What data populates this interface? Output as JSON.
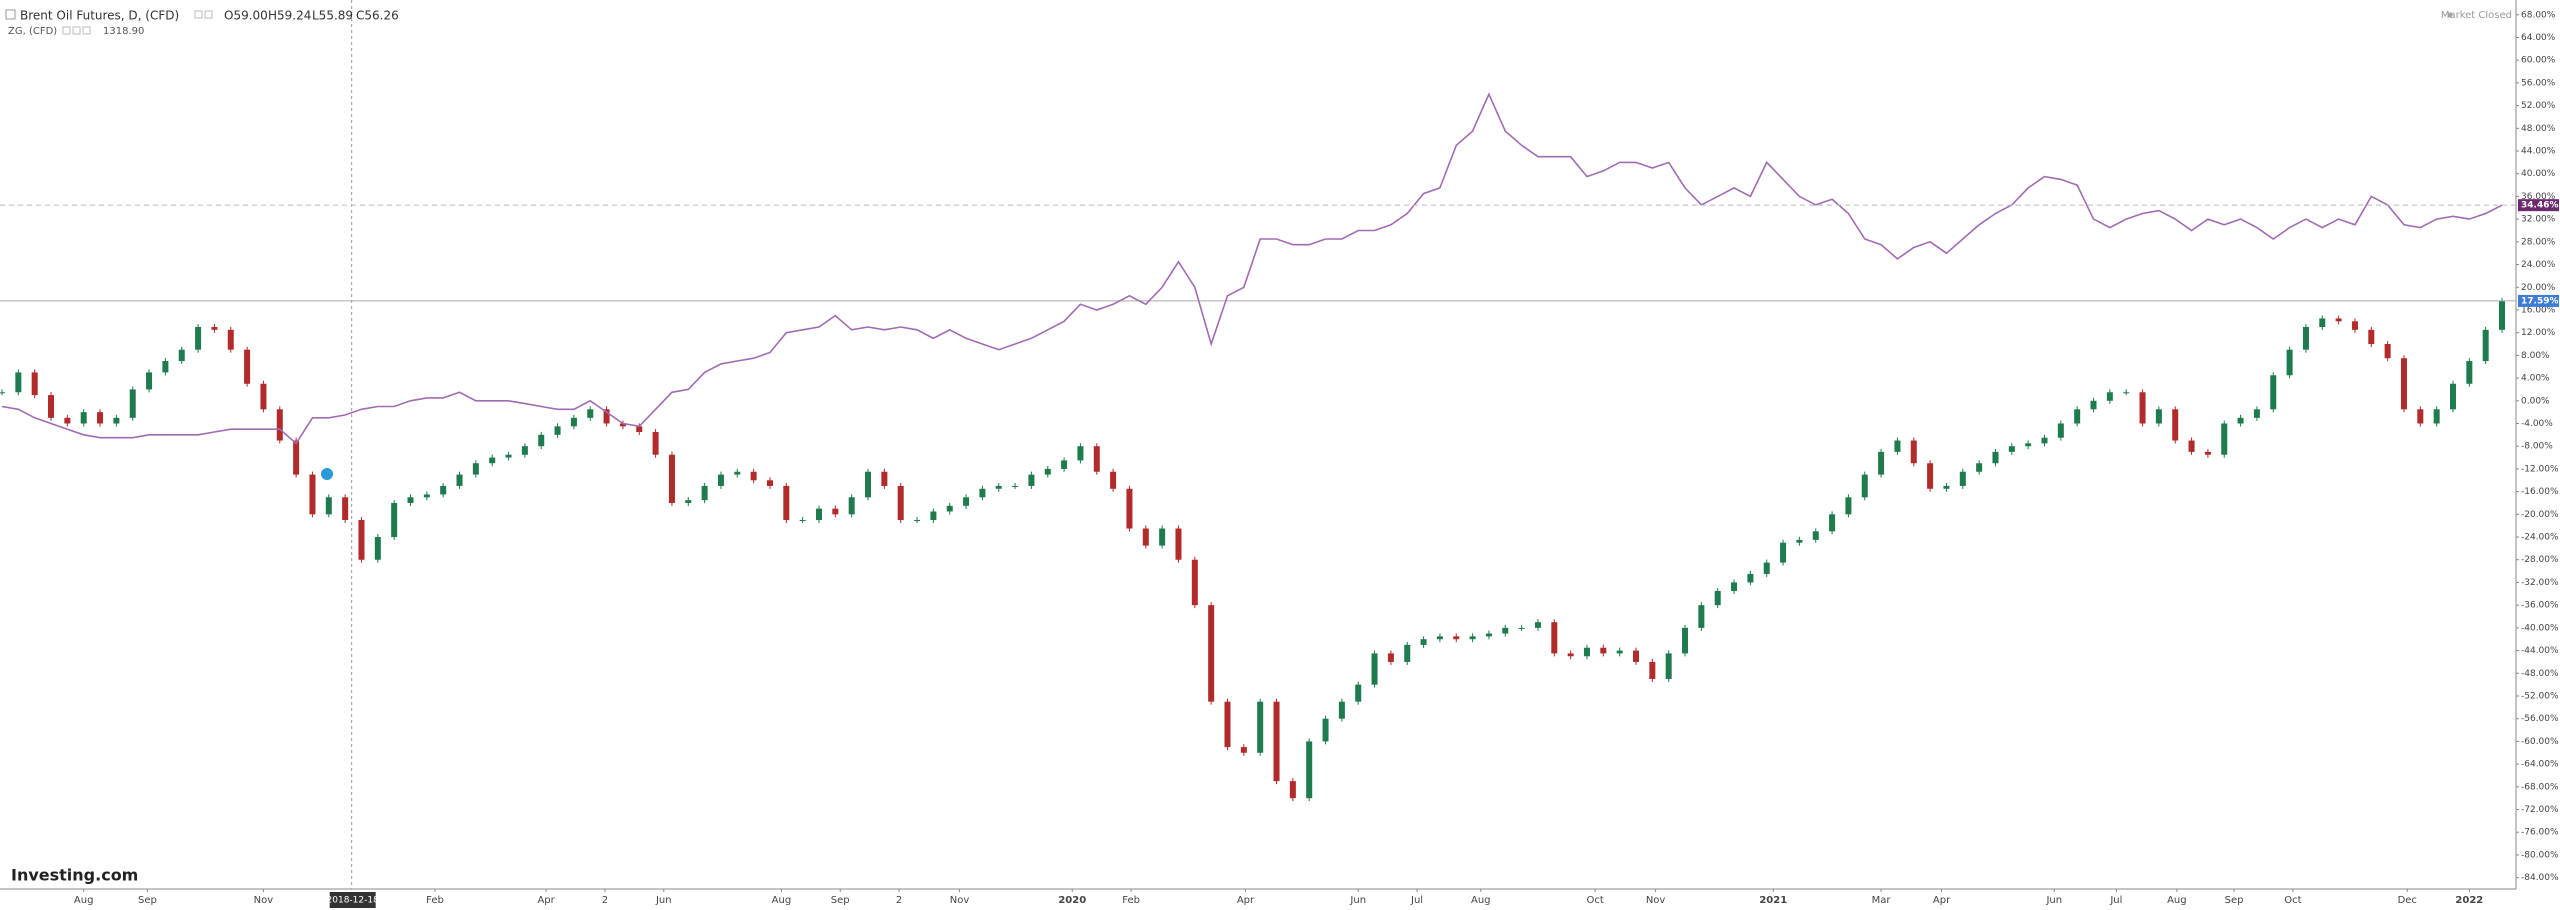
{
  "chart_data": {
    "type": "candlestick",
    "title": "Brent Oil Futures, D, (CFD)",
    "ohlc_labels": [
      "O59.00",
      "H59.24",
      "L55.89",
      "C56.26"
    ],
    "status": "Market Closed",
    "logo": "Investing.com",
    "crosshair": {
      "value": 21.4,
      "label": "2018-12-18"
    },
    "series": [
      {
        "name": "Brent Oil Futures, D, (CFD)",
        "type": "candlestick",
        "up_color": "#1e7b4e",
        "down_color": "#b22a2a",
        "last_label": "17.59%",
        "label_color": "#3d7bd9",
        "values": [
          1.5,
          5,
          1,
          -3,
          -4,
          -2,
          -4,
          -3,
          2,
          5,
          7,
          9,
          13,
          12.5,
          9,
          3,
          -1.5,
          -7,
          -13,
          -20,
          -17,
          -21,
          -28,
          -24,
          -18,
          -17,
          -16.5,
          -15,
          -13,
          -11,
          -10,
          -9.5,
          -8,
          -6,
          -4.5,
          -3,
          -1.5,
          -4,
          -4.5,
          -5.5,
          -9.5,
          -18,
          -17.5,
          -15,
          -13,
          -12.5,
          -14,
          -15,
          -21,
          -21,
          -19,
          -20,
          -17,
          -12.5,
          -15,
          -21,
          -21,
          -19.5,
          -18.5,
          -17,
          -15.5,
          -15,
          -15,
          -13,
          -12,
          -10.5,
          -8,
          -12.5,
          -15.5,
          -22.5,
          -25.5,
          -22.5,
          -28,
          -36,
          -53,
          -61,
          -62,
          -53,
          -67,
          -70,
          -60,
          -56,
          -53,
          -50,
          -44.5,
          -46,
          -43,
          -42,
          -41.5,
          -42,
          -41.5,
          -41,
          -40,
          -40,
          -39,
          -44.5,
          -45,
          -43.5,
          -44.5,
          -44,
          -46,
          -49,
          -44.5,
          -40,
          -36,
          -33.5,
          -32,
          -30.5,
          -28.5,
          -25,
          -24.5,
          -23,
          -20,
          -17,
          -13,
          -9,
          -7,
          -11,
          -15.5,
          -15,
          -12.5,
          -11,
          -9,
          -8,
          -7.5,
          -6.5,
          -4,
          -1.5,
          0,
          1.5,
          1.5,
          -4,
          -1.5,
          -7,
          -9,
          -9.5,
          -4,
          -3,
          -1.5,
          4.5,
          9,
          13,
          14.5,
          14,
          12.5,
          10,
          7.5,
          -1.5,
          -4,
          -1.5,
          3,
          7,
          12.5,
          17.59
        ]
      },
      {
        "name": "ZG, (CFD)",
        "type": "line",
        "color": "#a06bb4",
        "last_quote": "1318.90",
        "last_label": "34.46%",
        "label_color": "#6b2a6e",
        "values": [
          -1,
          -1.5,
          -3,
          -4,
          -5,
          -6,
          -6.5,
          -6.5,
          -6.5,
          -6,
          -6,
          -6,
          -6,
          -5.5,
          -5,
          -5,
          -5,
          -5,
          -7.5,
          -3,
          -3,
          -2.5,
          -1.5,
          -1,
          -1,
          0,
          0.5,
          0.5,
          1.5,
          0,
          0,
          0,
          -0.5,
          -1,
          -1.5,
          -1.5,
          0,
          -2,
          -4,
          -4.5,
          -1.5,
          1.5,
          2,
          5,
          6.5,
          7,
          7.5,
          8.5,
          12,
          12.5,
          13,
          15,
          12.5,
          13,
          12.5,
          13,
          12.5,
          11,
          12.5,
          11,
          10,
          9,
          10,
          11,
          12.5,
          14,
          17,
          16,
          17,
          18.5,
          17,
          20,
          24.5,
          20,
          10,
          18.5,
          20,
          28.5,
          28.5,
          27.5,
          27.5,
          28.5,
          28.5,
          30,
          30,
          31,
          33,
          36.5,
          37.5,
          45,
          47.5,
          54,
          47.5,
          45,
          43,
          43,
          43,
          39.5,
          40.5,
          42,
          42,
          41,
          42,
          37.5,
          34.5,
          36,
          37.5,
          36,
          42,
          39,
          36,
          34.5,
          35.5,
          33,
          28.5,
          27.5,
          25,
          27,
          28,
          26,
          28.5,
          31,
          33,
          34.5,
          37.5,
          39.5,
          39,
          38,
          32,
          30.5,
          32,
          33,
          33.5,
          32,
          30,
          32,
          31,
          32,
          30.5,
          28.5,
          30.5,
          32,
          30.5,
          32,
          31,
          36,
          34.5,
          31,
          30.5,
          32,
          32.5,
          32,
          33,
          34.46
        ]
      }
    ],
    "ylim": [
      -86,
      70.6
    ],
    "yticks": [
      {
        "value": 68,
        "label": "68.00%"
      },
      {
        "value": 64,
        "label": "64.00%"
      },
      {
        "value": 60,
        "label": "60.00%"
      },
      {
        "value": 56,
        "label": "56.00%"
      },
      {
        "value": 52,
        "label": "52.00%"
      },
      {
        "value": 48,
        "label": "48.00%"
      },
      {
        "value": 44,
        "label": "44.00%"
      },
      {
        "value": 40,
        "label": "40.00%"
      },
      {
        "value": 36,
        "label": "36.00%"
      },
      {
        "value": 32,
        "label": "32.00%"
      },
      {
        "value": 28,
        "label": "28.00%"
      },
      {
        "value": 24,
        "label": "24.00%"
      },
      {
        "value": 20,
        "label": "20.00%"
      },
      {
        "value": 16,
        "label": "16.00%"
      },
      {
        "value": 12,
        "label": "12.00%"
      },
      {
        "value": 8,
        "label": "8.00%"
      },
      {
        "value": 4,
        "label": "4.00%"
      },
      {
        "value": 0,
        "label": "0.00%"
      },
      {
        "value": -4,
        "label": "-4.00%"
      },
      {
        "value": -8,
        "label": "-8.00%"
      },
      {
        "value": -12,
        "label": "-12.00%"
      },
      {
        "value": -16,
        "label": "-16.00%"
      },
      {
        "value": -20,
        "label": "-20.00%"
      },
      {
        "value": -24,
        "label": "-24.00%"
      },
      {
        "value": -28,
        "label": "-28.00%"
      },
      {
        "value": -32,
        "label": "-32.00%"
      },
      {
        "value": -36,
        "label": "-36.00%"
      },
      {
        "value": -40,
        "label": "-40.00%"
      },
      {
        "value": -44,
        "label": "-44.00%"
      },
      {
        "value": -48,
        "label": "-48.00%"
      },
      {
        "value": -52,
        "label": "-52.00%"
      },
      {
        "value": -56,
        "label": "-56.00%"
      },
      {
        "value": -60,
        "label": "-60.00%"
      },
      {
        "value": -64,
        "label": "-64.00%"
      },
      {
        "value": -68,
        "label": "-68.00%"
      },
      {
        "value": -72,
        "label": "-72.00%"
      },
      {
        "value": -76,
        "label": "-76.00%"
      },
      {
        "value": -80,
        "label": "-80.00%"
      },
      {
        "value": -84,
        "label": "-84.00%"
      }
    ],
    "xticks": [
      {
        "value": 5.0,
        "label": "Aug"
      },
      {
        "value": 8.9,
        "label": "Sep"
      },
      {
        "value": 16.0,
        "label": "Nov"
      },
      {
        "value": 26.5,
        "label": "Feb"
      },
      {
        "value": 33.3,
        "label": "Apr"
      },
      {
        "value": 36.9,
        "label": "2"
      },
      {
        "value": 40.5,
        "label": "Jun"
      },
      {
        "value": 47.7,
        "label": "Aug"
      },
      {
        "value": 51.3,
        "label": "Sep"
      },
      {
        "value": 54.9,
        "label": "2"
      },
      {
        "value": 58.6,
        "label": "Nov"
      },
      {
        "value": 65.5,
        "label": "2020"
      },
      {
        "value": 69.1,
        "label": "Feb"
      },
      {
        "value": 76.1,
        "label": "Apr"
      },
      {
        "value": 83.0,
        "label": "Jun"
      },
      {
        "value": 86.6,
        "label": "Jul"
      },
      {
        "value": 90.5,
        "label": "Aug"
      },
      {
        "value": 97.5,
        "label": "Oct"
      },
      {
        "value": 101.2,
        "label": "Nov"
      },
      {
        "value": 108.4,
        "label": "2021"
      },
      {
        "value": 115.0,
        "label": "Mar"
      },
      {
        "value": 118.7,
        "label": "Apr"
      },
      {
        "value": 125.6,
        "label": "Jun"
      },
      {
        "value": 129.4,
        "label": "Jul"
      },
      {
        "value": 133.1,
        "label": "Aug"
      },
      {
        "value": 136.6,
        "label": "Sep"
      },
      {
        "value": 140.2,
        "label": "Oct"
      },
      {
        "value": 147.2,
        "label": "Dec"
      },
      {
        "value": 151.0,
        "label": "2022"
      }
    ]
  }
}
